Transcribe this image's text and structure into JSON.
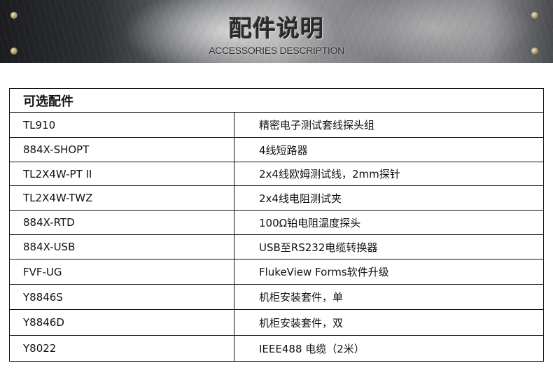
{
  "banner": {
    "title": "配件说明",
    "subtitle": "ACCESSORIES DESCRIPTION"
  },
  "table": {
    "header": "可选配件",
    "rows": [
      {
        "part": "TL910",
        "description": "精密电子测试套线探头组"
      },
      {
        "part": "884X-SHOPT",
        "description": "4线短路器"
      },
      {
        "part": "TL2X4W-PT II",
        "description": "2x4线欧姆测试线，2mm探针"
      },
      {
        "part": "TL2X4W-TWZ",
        "description": "2x4线电阻测试夹"
      },
      {
        "part": "884X-RTD",
        "description": "100Ω铂电阻温度探头"
      },
      {
        "part": "884X-USB",
        "description": "USB至RS232电缆转换器"
      },
      {
        "part": "FVF-UG",
        "description": "FlukeView Forms软件升级"
      },
      {
        "part": "Y8846S",
        "description": "机柜安装套件，单"
      },
      {
        "part": "Y8846D",
        "description": "机柜安装套件，双"
      },
      {
        "part": "Y8022",
        "description": "IEEE488 电缆（2米）"
      }
    ]
  }
}
